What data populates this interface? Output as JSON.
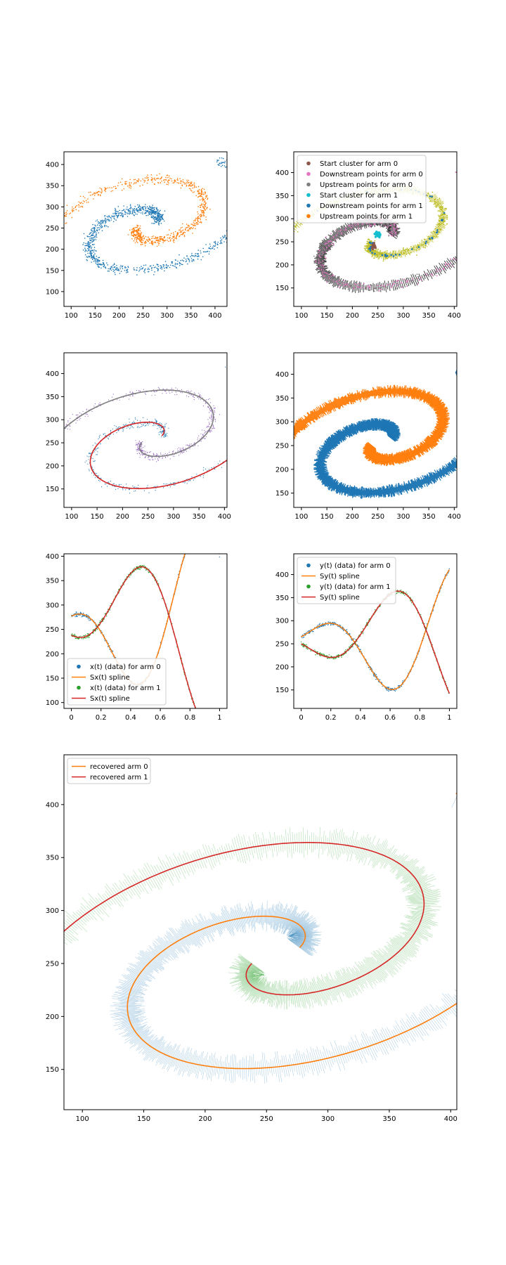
{
  "palette": {
    "blue": "#1f77b4",
    "orange": "#ff7f0e",
    "green": "#2ca02c",
    "red": "#d62728",
    "purple": "#9467bd",
    "brown": "#8c564b",
    "pink": "#e377c2",
    "gray": "#7f7f7f",
    "olive": "#bcbd22",
    "cyan": "#17becf"
  },
  "chart_data": [
    {
      "id": "p1",
      "type": "scatter",
      "xlim": [
        85,
        425
      ],
      "ylim": [
        65,
        430
      ],
      "xticks": [
        100,
        150,
        200,
        250,
        300,
        350,
        400
      ],
      "yticks": [
        100,
        150,
        200,
        250,
        300,
        350,
        400
      ],
      "grid": false,
      "series": [
        {
          "color": "blue",
          "kind": "points",
          "arm": 0
        },
        {
          "color": "orange",
          "kind": "points",
          "arm": 1
        }
      ]
    },
    {
      "id": "p2",
      "type": "scatter",
      "xlim": [
        85,
        405
      ],
      "ylim": [
        110,
        445
      ],
      "xticks": [
        100,
        150,
        200,
        250,
        300,
        350,
        400
      ],
      "yticks": [
        150,
        200,
        250,
        300,
        350,
        400
      ],
      "grid": false,
      "legend": "top-left",
      "series": [
        {
          "name": "Start cluster for arm 0",
          "color": "brown",
          "marker": "dot"
        },
        {
          "name": "Downstream points for arm 0",
          "color": "pink",
          "marker": "dot"
        },
        {
          "name": "Upstream points for arm 0",
          "color": "gray",
          "marker": "dot"
        },
        {
          "name": "Start cluster for arm 1",
          "color": "cyan",
          "marker": "dot"
        },
        {
          "name": "Downstream points for arm 1",
          "color": "blue",
          "marker": "dot"
        },
        {
          "name": "Upstream points for arm 1",
          "color": "orange",
          "marker": "dot"
        }
      ]
    },
    {
      "id": "p3",
      "type": "scatter",
      "xlim": [
        85,
        405
      ],
      "ylim": [
        110,
        445
      ],
      "xticks": [
        100,
        150,
        200,
        250,
        300,
        350,
        400
      ],
      "yticks": [
        150,
        200,
        250,
        300,
        350,
        400
      ],
      "grid": false,
      "series": [
        {
          "color": "blue",
          "kind": "points",
          "arm": 0
        },
        {
          "color": "purple",
          "kind": "points",
          "arm": 1
        },
        {
          "color": "red",
          "kind": "curve",
          "arm": 0
        },
        {
          "color": "gray",
          "kind": "curve",
          "arm": 1
        }
      ]
    },
    {
      "id": "p4",
      "type": "scatter",
      "xlim": [
        85,
        405
      ],
      "ylim": [
        120,
        445
      ],
      "xticks": [
        100,
        150,
        200,
        250,
        300,
        350,
        400
      ],
      "yticks": [
        150,
        200,
        250,
        300,
        350,
        400
      ],
      "grid": false,
      "series": [
        {
          "color": "blue",
          "kind": "normals",
          "arm": 0
        },
        {
          "color": "orange",
          "kind": "normals",
          "arm": 1
        }
      ]
    },
    {
      "id": "p5",
      "type": "line",
      "xlim": [
        -0.05,
        1.05
      ],
      "ylim": [
        88,
        405
      ],
      "xticks": [
        0.0,
        0.2,
        0.4,
        0.6,
        0.8,
        1.0
      ],
      "yticks": [
        100,
        150,
        200,
        250,
        300,
        350,
        400
      ],
      "grid": false,
      "legend": "bottom-left",
      "series": [
        {
          "name": "x(t) (data) for arm 0",
          "color": "blue",
          "marker": "dot",
          "param": "x",
          "arm": 0
        },
        {
          "name": "Sx(t) spline",
          "color": "orange",
          "marker": "line",
          "param": "x",
          "arm": 0
        },
        {
          "name": "x(t) (data) for arm 1",
          "color": "green",
          "marker": "dot",
          "param": "x",
          "arm": 1
        },
        {
          "name": "Sx(t) spline",
          "color": "red",
          "marker": "line",
          "param": "x",
          "arm": 1
        }
      ]
    },
    {
      "id": "p6",
      "type": "line",
      "xlim": [
        -0.05,
        1.05
      ],
      "ylim": [
        110,
        445
      ],
      "xticks": [
        0.0,
        0.2,
        0.4,
        0.6,
        0.8,
        1.0
      ],
      "yticks": [
        150,
        200,
        250,
        300,
        350,
        400
      ],
      "grid": false,
      "legend": "top-left",
      "series": [
        {
          "name": "y(t) (data) for arm 0",
          "color": "blue",
          "marker": "dot",
          "param": "y",
          "arm": 0
        },
        {
          "name": "Sy(t) spline",
          "color": "orange",
          "marker": "line",
          "param": "y",
          "arm": 0
        },
        {
          "name": "y(t) (data) for arm 1",
          "color": "green",
          "marker": "dot",
          "param": "y",
          "arm": 1
        },
        {
          "name": "Sy(t) spline",
          "color": "red",
          "marker": "line",
          "param": "y",
          "arm": 1
        }
      ]
    },
    {
      "id": "p7",
      "type": "line",
      "xlim": [
        85,
        405
      ],
      "ylim": [
        112,
        447
      ],
      "xticks": [
        100,
        150,
        200,
        250,
        300,
        350,
        400
      ],
      "yticks": [
        150,
        200,
        250,
        300,
        350,
        400
      ],
      "grid": false,
      "legend": "top-left",
      "series": [
        {
          "color": "blue",
          "kind": "normals-light",
          "arm": 0
        },
        {
          "color": "green",
          "kind": "normals-light",
          "arm": 1
        },
        {
          "name": "recovered arm 0",
          "color": "orange",
          "marker": "line",
          "kind": "curve",
          "arm": 0
        },
        {
          "name": "recovered arm 1",
          "color": "red",
          "marker": "line",
          "kind": "curve",
          "arm": 1
        }
      ]
    }
  ]
}
